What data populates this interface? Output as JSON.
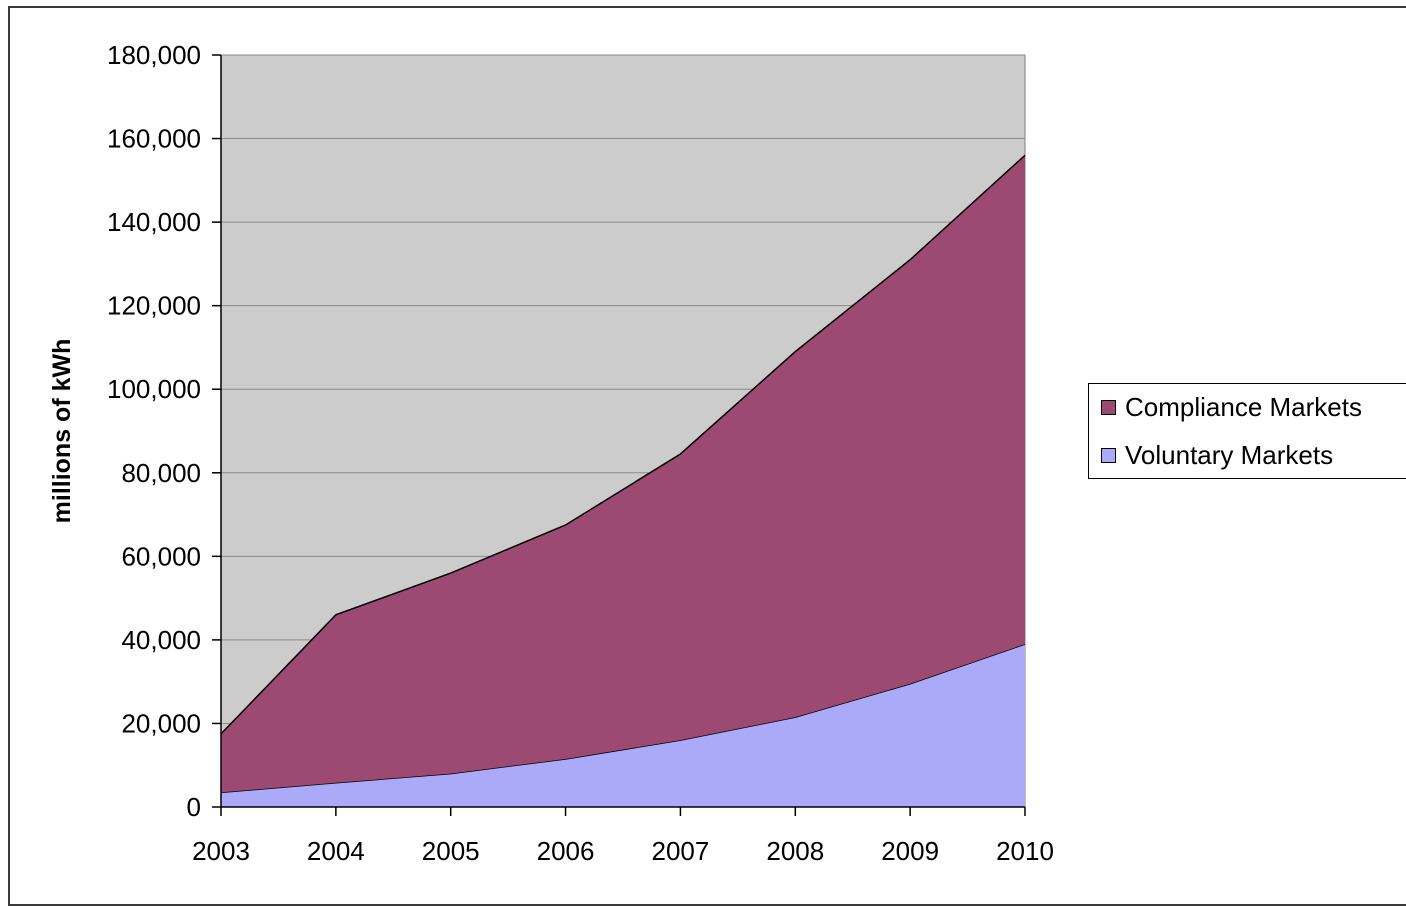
{
  "chart_data": {
    "type": "area",
    "stacked": true,
    "ylabel": "millions of kWh",
    "xlabel": "",
    "title": "",
    "x": [
      "2003",
      "2004",
      "2005",
      "2006",
      "2007",
      "2008",
      "2009",
      "2010"
    ],
    "ylim": [
      0,
      180000
    ],
    "yticks": [
      0,
      20000,
      40000,
      60000,
      80000,
      100000,
      120000,
      140000,
      160000,
      180000
    ],
    "ytick_labels": [
      "0",
      "20,000",
      "40,000",
      "60,000",
      "80,000",
      "100,000",
      "120,000",
      "140,000",
      "160,000",
      "180,000"
    ],
    "grid": "horizontal",
    "legend_position": "right",
    "series": [
      {
        "name": "Voluntary Markets",
        "values": [
          3500,
          5800,
          8000,
          11500,
          16000,
          21500,
          29500,
          39000
        ],
        "color": "#aaaaf8"
      },
      {
        "name": "Compliance Markets",
        "values": [
          14000,
          40200,
          48000,
          56000,
          68500,
          87500,
          101500,
          117000
        ],
        "color": "#9c4a72"
      }
    ],
    "plot_background": "#cccccc"
  },
  "legend": {
    "items": [
      {
        "label": "Compliance Markets",
        "color": "#9c4a72"
      },
      {
        "label": "Voluntary Markets",
        "color": "#aaaaf8"
      }
    ]
  }
}
